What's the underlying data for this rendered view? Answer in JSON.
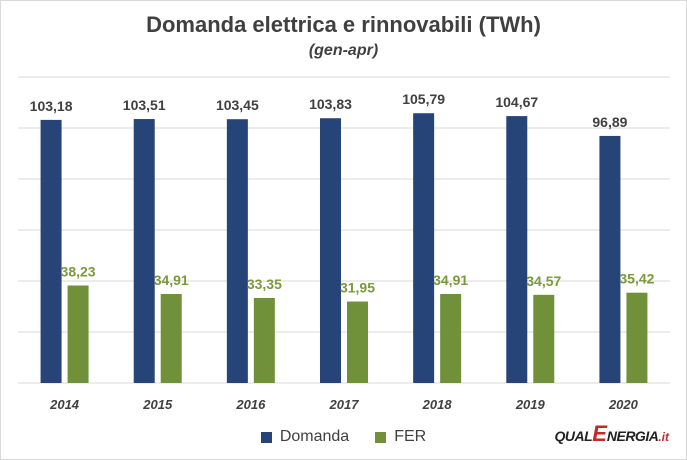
{
  "title": "Domanda elettrica e rinnovabili (TWh)",
  "subtitle": "(gen-apr)",
  "logo": {
    "part1": "QUAL",
    "part2": "E",
    "part3": "NERGIA",
    "part4": ".it"
  },
  "colors": {
    "domanda": "#264478",
    "fer": "#70913a",
    "fer_label": "#7a9a3a",
    "grid": "#d9d9d9"
  },
  "chart_data": {
    "type": "bar",
    "categories": [
      "2014",
      "2015",
      "2016",
      "2017",
      "2018",
      "2019",
      "2020"
    ],
    "series": [
      {
        "name": "Domanda",
        "values": [
          103.18,
          103.51,
          103.45,
          103.83,
          105.79,
          104.67,
          96.89
        ],
        "labels": [
          "103,18",
          "103,51",
          "103,45",
          "103,83",
          "105,79",
          "104,67",
          "96,89"
        ]
      },
      {
        "name": "FER",
        "values": [
          38.23,
          34.91,
          33.35,
          31.95,
          34.91,
          34.57,
          35.42
        ],
        "labels": [
          "38,23",
          "34,91",
          "33,35",
          "31,95",
          "34,91",
          "34,57",
          "35,42"
        ]
      }
    ],
    "ylim": [
      0,
      120
    ],
    "grid": true,
    "legend_position": "bottom"
  }
}
